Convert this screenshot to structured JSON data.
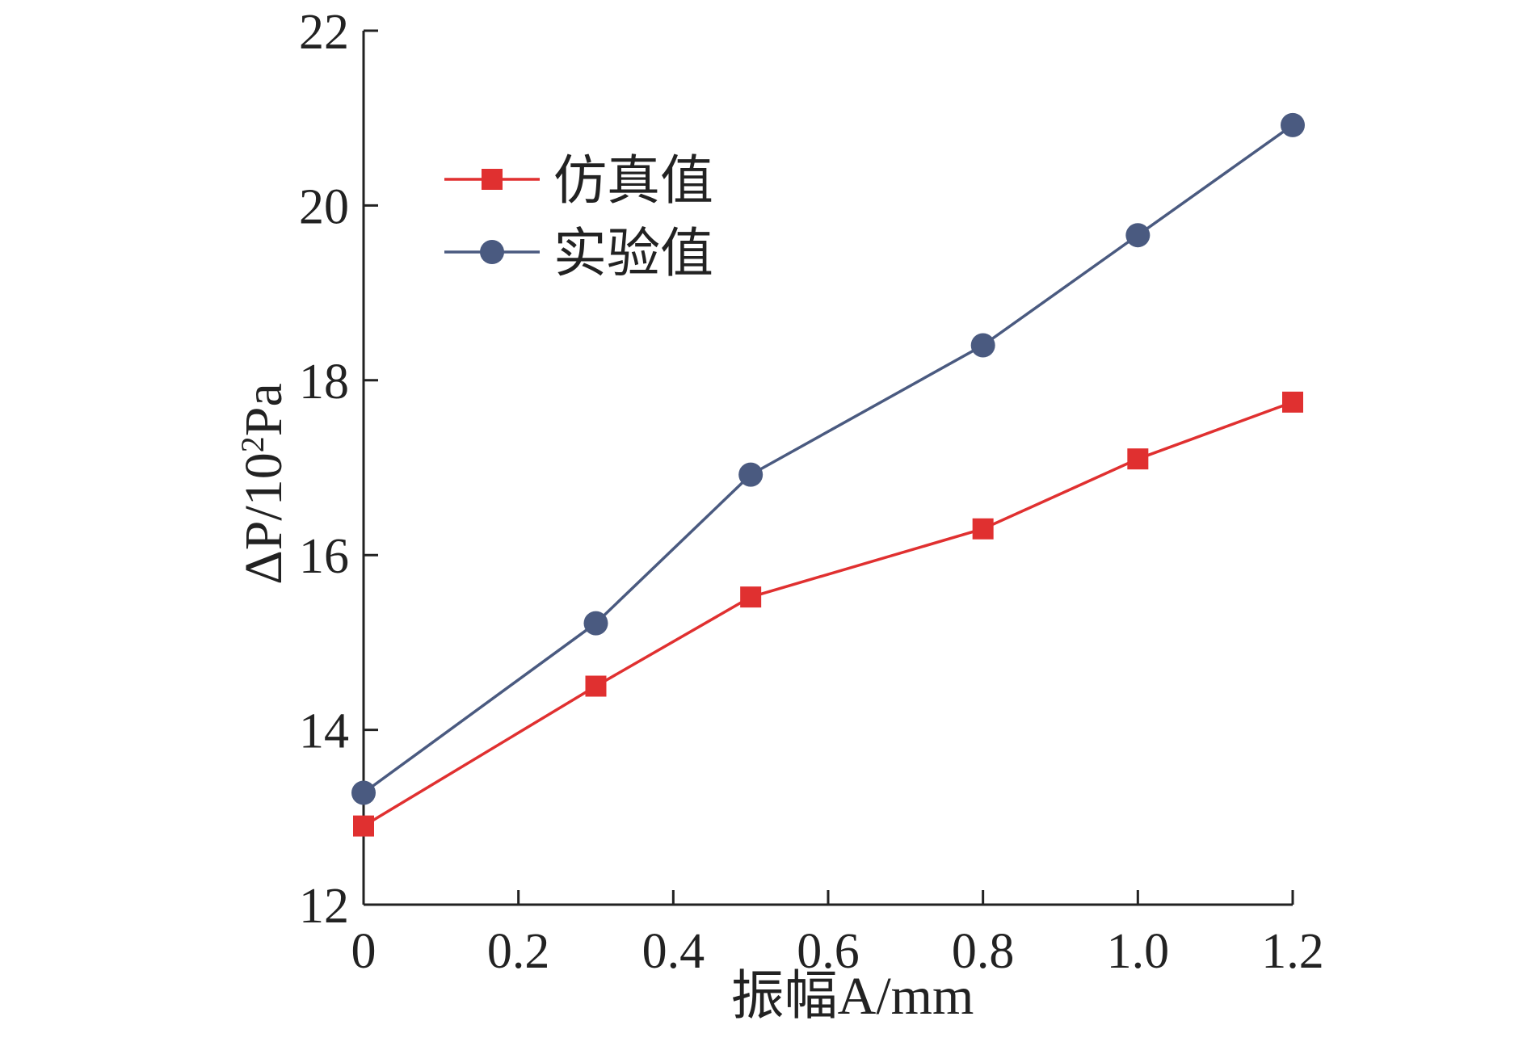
{
  "chart_data": {
    "type": "line",
    "title": "",
    "xlabel": "振幅A/mm",
    "ylabel_parts": {
      "prefix": "ΔP/10",
      "superscript": "2",
      "suffix": "Pa"
    },
    "xlim": [
      0,
      1.2
    ],
    "ylim": [
      12,
      22
    ],
    "x_ticks": [
      0,
      0.2,
      0.4,
      0.6,
      0.8,
      1.0,
      1.2
    ],
    "x_tick_labels": [
      "0",
      "0.2",
      "0.4",
      "0.6",
      "0.8",
      "1.0",
      "1.2"
    ],
    "y_ticks": [
      12,
      14,
      16,
      18,
      20,
      22
    ],
    "y_tick_labels": [
      "12",
      "14",
      "16",
      "18",
      "20",
      "22"
    ],
    "grid": false,
    "legend_position": "top-left",
    "series": [
      {
        "name": "仿真值",
        "color": "#e03030",
        "marker": "square",
        "x": [
          0,
          0.3,
          0.5,
          0.8,
          1.0,
          1.2
        ],
        "y": [
          12.9,
          14.5,
          15.52,
          16.3,
          17.1,
          17.75
        ]
      },
      {
        "name": "实验值",
        "color": "#4a5a80",
        "marker": "circle",
        "x": [
          0,
          0.3,
          0.5,
          0.8,
          1.0,
          1.2
        ],
        "y": [
          13.28,
          15.22,
          16.92,
          18.4,
          19.66,
          20.92
        ]
      }
    ]
  }
}
